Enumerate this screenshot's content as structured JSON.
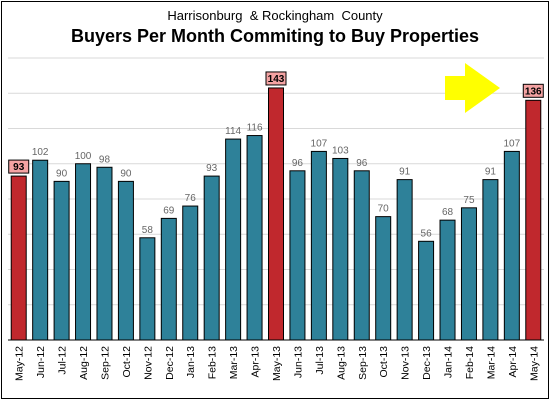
{
  "chart_data": {
    "type": "bar",
    "subtitle": "Harrisonburg  & Rockingham  County",
    "title": "Buyers Per Month Commiting  to Buy Properties",
    "categories": [
      "May-12",
      "Jun-12",
      "Jul-12",
      "Aug-12",
      "Sep-12",
      "Oct-12",
      "Nov-12",
      "Dec-12",
      "Jan-13",
      "Feb-13",
      "Mar-13",
      "Apr-13",
      "May-13",
      "Jun-13",
      "Jul-13",
      "Aug-13",
      "Sep-13",
      "Oct-13",
      "Nov-13",
      "Dec-13",
      "Jan-14",
      "Feb-14",
      "Mar-14",
      "Apr-14",
      "May-14"
    ],
    "values": [
      93,
      102,
      90,
      100,
      98,
      90,
      58,
      69,
      76,
      93,
      114,
      116,
      143,
      96,
      107,
      103,
      96,
      70,
      91,
      56,
      68,
      75,
      91,
      107,
      136
    ],
    "highlighted": [
      "May-12",
      "May-13",
      "May-14"
    ],
    "ylim": [
      0,
      160
    ],
    "grid": true,
    "annotation": "yellow-arrow-pointing-to-May-14",
    "colors": {
      "bar": "#2E8199",
      "bar_highlight": "#C0282D",
      "label_box": "#F4A3A3",
      "arrow": "#FFFF00",
      "grid": "#D9D9D9"
    }
  }
}
